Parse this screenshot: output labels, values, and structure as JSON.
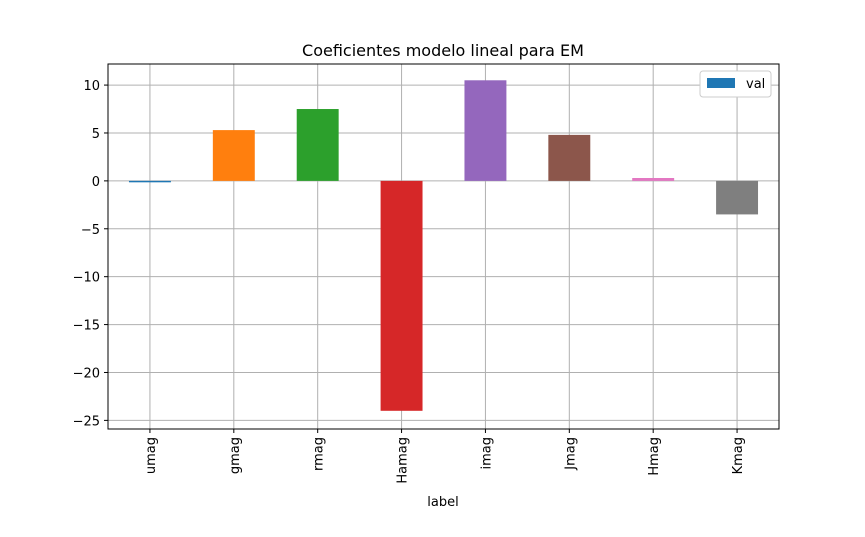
{
  "chart_data": {
    "type": "bar",
    "title": "Coeficientes modelo lineal para EM",
    "xlabel": "label",
    "ylabel": "",
    "categories": [
      "umag",
      "gmag",
      "rmag",
      "Hamag",
      "imag",
      "Jmag",
      "Hmag",
      "Kmag"
    ],
    "series": [
      {
        "name": "val",
        "values": [
          -0.15,
          5.3,
          7.5,
          -24.0,
          10.5,
          4.8,
          0.3,
          -3.5
        ]
      }
    ],
    "bar_colors": [
      "#1f77b4",
      "#ff7f0e",
      "#2ca02c",
      "#d62728",
      "#9467bd",
      "#8c564b",
      "#e377c2",
      "#7f7f7f"
    ],
    "ylim": [
      -25.9,
      12.2
    ],
    "yticks": [
      10,
      5,
      0,
      -5,
      -10,
      -15,
      -20,
      -25
    ],
    "ytick_labels": [
      "10",
      "5",
      "0",
      "−5",
      "−10",
      "−15",
      "−20",
      "−25"
    ],
    "grid": true,
    "legend": {
      "position": "top-right",
      "entries": [
        "val"
      ],
      "swatch_color": "#1f77b4"
    }
  }
}
